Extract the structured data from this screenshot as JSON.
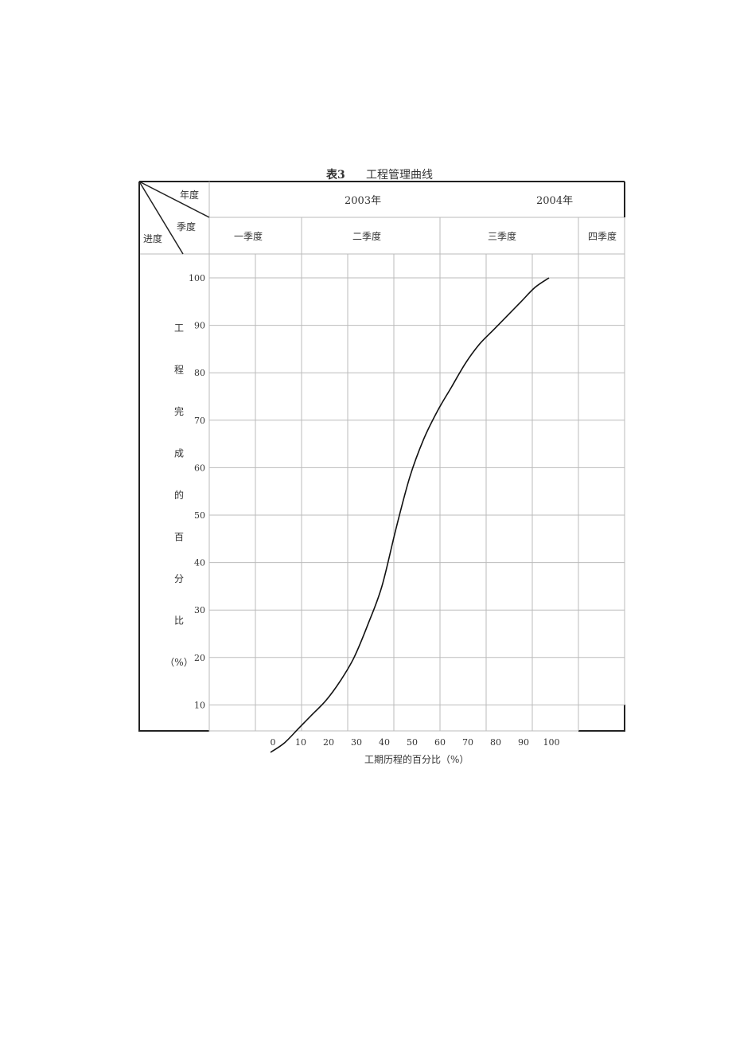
{
  "caption": {
    "number": "表3",
    "text": "工程管理曲线"
  },
  "header": {
    "corner": {
      "year_label": "年度",
      "quarter_label": "季度",
      "progress_label": "进度"
    },
    "years": [
      "2003年",
      "2004年"
    ],
    "quarters": [
      "一季度",
      "二季度",
      "三季度",
      "四季度"
    ]
  },
  "chart_data": {
    "type": "line",
    "title": "工程管理曲线",
    "xlabel": "工期历程的百分比（%）",
    "ylabel": [
      "工",
      "程",
      "完",
      "成",
      "的",
      "百",
      "分",
      "比",
      "（%）"
    ],
    "x_ticks": [
      "0",
      "10",
      "20",
      "30",
      "40",
      "50",
      "60",
      "70",
      "80",
      "90",
      "100"
    ],
    "y_ticks": [
      "10",
      "20",
      "30",
      "40",
      "50",
      "60",
      "70",
      "80",
      "90",
      "100"
    ],
    "xlim": [
      0,
      100
    ],
    "ylim": [
      0,
      100
    ],
    "grid": true,
    "legend": "none",
    "series": [
      {
        "x": [
          0,
          5,
          10,
          15,
          20,
          25,
          30,
          35,
          40,
          45,
          50,
          55,
          60,
          65,
          70,
          75,
          80,
          85,
          90,
          95,
          100
        ],
        "y": [
          0,
          2,
          5,
          8,
          11,
          15,
          20,
          27,
          35,
          47,
          58,
          66,
          72,
          77,
          82,
          86,
          89,
          92,
          95,
          98,
          100
        ]
      }
    ],
    "colors": {
      "curve": "#111111",
      "grid": "#bbbbbb",
      "frame": "#222222"
    }
  }
}
